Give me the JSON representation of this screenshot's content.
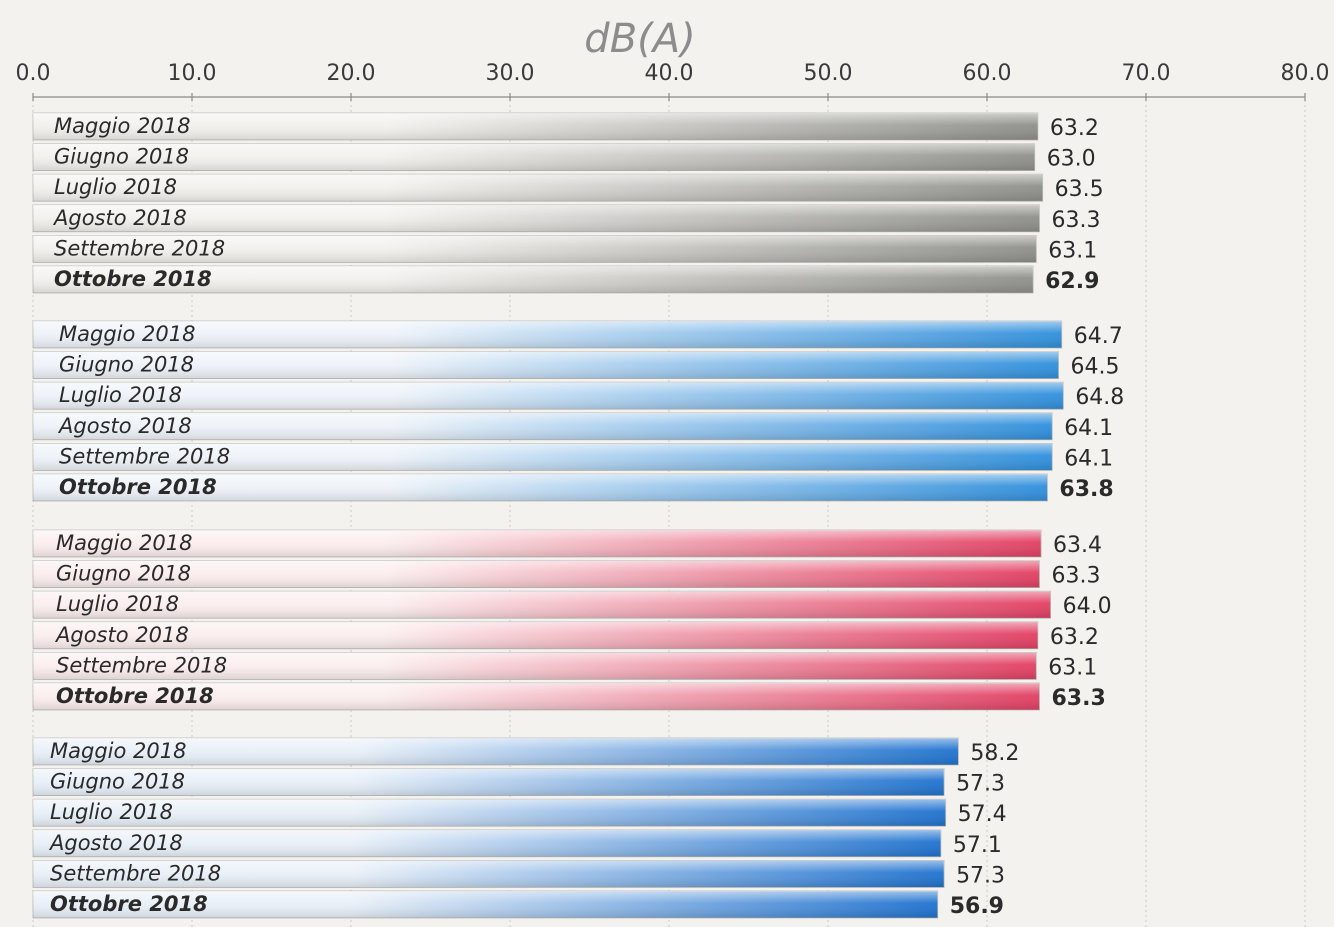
{
  "chart_data": {
    "type": "bar",
    "orientation": "horizontal",
    "unit_label": "dB(A)",
    "xlim": [
      0,
      80
    ],
    "ticks": [
      "0.0",
      "10.0",
      "20.0",
      "30.0",
      "40.0",
      "50.0",
      "60.0",
      "70.0",
      "80.0"
    ],
    "grid": true,
    "groups": [
      {
        "color_light": "#f2f1ee",
        "color_dark": "#8f8f8a",
        "bars": [
          {
            "label": "Maggio 2018",
            "value": 63.2,
            "display": "63.2"
          },
          {
            "label": "Giugno 2018",
            "value": 63.0,
            "display": "63.0"
          },
          {
            "label": "Luglio 2018",
            "value": 63.5,
            "display": "63.5"
          },
          {
            "label": "Agosto 2018",
            "value": 63.3,
            "display": "63.3"
          },
          {
            "label": "Settembre 2018",
            "value": 63.1,
            "display": "63.1"
          },
          {
            "label": "Ottobre 2018",
            "value": 62.9,
            "display": "62.9",
            "bold": true
          }
        ]
      },
      {
        "color_light": "#eef3f9",
        "color_dark": "#2f8fdc",
        "bars": [
          {
            "label": "Maggio 2018",
            "value": 64.7,
            "display": "64.7"
          },
          {
            "label": "Giugno 2018",
            "value": 64.5,
            "display": "64.5"
          },
          {
            "label": "Luglio 2018",
            "value": 64.8,
            "display": "64.8"
          },
          {
            "label": "Agosto 2018",
            "value": 64.1,
            "display": "64.1"
          },
          {
            "label": "Settembre 2018",
            "value": 64.1,
            "display": "64.1"
          },
          {
            "label": "Ottobre 2018",
            "value": 63.8,
            "display": "63.8",
            "bold": true
          }
        ]
      },
      {
        "color_light": "#fbeeee",
        "color_dark": "#e23f63",
        "bars": [
          {
            "label": "Maggio 2018",
            "value": 63.4,
            "display": "63.4"
          },
          {
            "label": "Giugno 2018",
            "value": 63.3,
            "display": "63.3"
          },
          {
            "label": "Luglio 2018",
            "value": 64.0,
            "display": "64.0"
          },
          {
            "label": "Agosto 2018",
            "value": 63.2,
            "display": "63.2"
          },
          {
            "label": "Settembre 2018",
            "value": 63.1,
            "display": "63.1"
          },
          {
            "label": "Ottobre 2018",
            "value": 63.3,
            "display": "63.3",
            "bold": true
          }
        ]
      },
      {
        "color_light": "#e9f0f8",
        "color_dark": "#1f72cf",
        "bars": [
          {
            "label": "Maggio 2018",
            "value": 58.2,
            "display": "58.2"
          },
          {
            "label": "Giugno 2018",
            "value": 57.3,
            "display": "57.3"
          },
          {
            "label": "Luglio 2018",
            "value": 57.4,
            "display": "57.4"
          },
          {
            "label": "Agosto 2018",
            "value": 57.1,
            "display": "57.1"
          },
          {
            "label": "Settembre 2018",
            "value": 57.3,
            "display": "57.3"
          },
          {
            "label": "Ottobre 2018",
            "value": 56.9,
            "display": "56.9",
            "bold": true
          }
        ]
      }
    ]
  }
}
